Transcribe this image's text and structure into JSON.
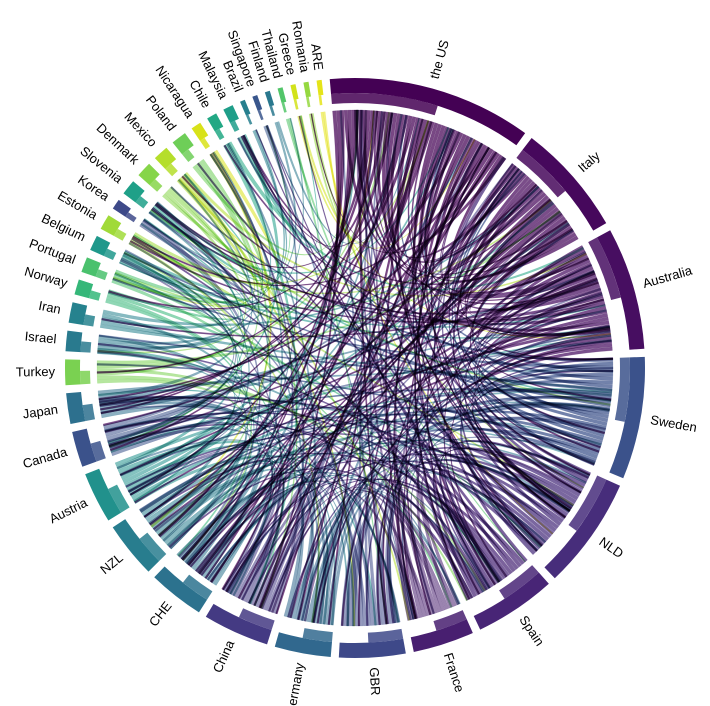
{
  "chart_data": {
    "type": "chord",
    "title": "",
    "nodes": [
      {
        "name": "the US",
        "size": 40,
        "color": "#440154"
      },
      {
        "name": "Italy",
        "size": 22,
        "color": "#46085c"
      },
      {
        "name": "Australia",
        "size": 24,
        "color": "#470e61"
      },
      {
        "name": "Sweden",
        "size": 24,
        "color": "#3b528b"
      },
      {
        "name": "NLD",
        "size": 22,
        "color": "#472d7b"
      },
      {
        "name": "Spain",
        "size": 16,
        "color": "#482576"
      },
      {
        "name": "France",
        "size": 12,
        "color": "#481f70"
      },
      {
        "name": "GBR",
        "size": 13,
        "color": "#3e4989"
      },
      {
        "name": "Germany",
        "size": 11,
        "color": "#31688e"
      },
      {
        "name": "China",
        "size": 13,
        "color": "#443a83"
      },
      {
        "name": "CHE",
        "size": 11,
        "color": "#2c728e"
      },
      {
        "name": "NZL",
        "size": 11,
        "color": "#287d8e"
      },
      {
        "name": "Austria",
        "size": 10,
        "color": "#21918c"
      },
      {
        "name": "Canada",
        "size": 7,
        "color": "#3b528b"
      },
      {
        "name": "Japan",
        "size": 6,
        "color": "#2d708e"
      },
      {
        "name": "Turkey",
        "size": 5,
        "color": "#7ad151"
      },
      {
        "name": "Israel",
        "size": 4,
        "color": "#297a8e"
      },
      {
        "name": "Iran",
        "size": 4,
        "color": "#26828e"
      },
      {
        "name": "Norway",
        "size": 3,
        "color": "#35b779"
      },
      {
        "name": "Portugal",
        "size": 3,
        "color": "#4ac16d"
      },
      {
        "name": "Belgium",
        "size": 3,
        "color": "#1f988b"
      },
      {
        "name": "Estonia",
        "size": 3,
        "color": "#a0da39"
      },
      {
        "name": "Korea",
        "size": 2,
        "color": "#3e4a89"
      },
      {
        "name": "Slovenia",
        "size": 3,
        "color": "#1fa088"
      },
      {
        "name": "Denmark",
        "size": 3,
        "color": "#86d549"
      },
      {
        "name": "Mexico",
        "size": 3,
        "color": "#b5de2b"
      },
      {
        "name": "Poland",
        "size": 3,
        "color": "#6ece58"
      },
      {
        "name": "Nicaragua",
        "size": 2,
        "color": "#d8e219"
      },
      {
        "name": "Chile",
        "size": 2,
        "color": "#22a884"
      },
      {
        "name": "Malaysia",
        "size": 2,
        "color": "#1f9e89"
      },
      {
        "name": "Brazil",
        "size": 1,
        "color": "#277f8e"
      },
      {
        "name": "Singapore",
        "size": 1,
        "color": "#39568c"
      },
      {
        "name": "Finland",
        "size": 1,
        "color": "#2a788e"
      },
      {
        "name": "Thailand",
        "size": 1,
        "color": "#52c569"
      },
      {
        "name": "Greece",
        "size": 1,
        "color": "#d2e21b"
      },
      {
        "name": "Romania",
        "size": 1,
        "color": "#95d840"
      },
      {
        "name": "ARE",
        "size": 1,
        "color": "#e5e419"
      }
    ]
  }
}
